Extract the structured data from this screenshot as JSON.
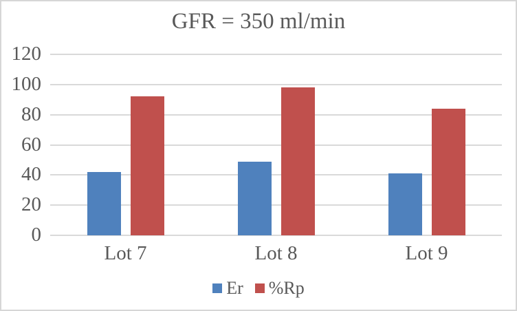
{
  "window": {
    "background": "#FFFFFF",
    "border_color": "#D6D6D6"
  },
  "chart_data": {
    "type": "bar",
    "title": "GFR = 350 ml/min",
    "categories": [
      "Lot 7",
      "Lot 8",
      "Lot 9"
    ],
    "series": [
      {
        "name": "Er",
        "color": "#4F81BD",
        "values": [
          42,
          49,
          41
        ]
      },
      {
        "name": "%Rp",
        "color": "#C0504D",
        "values": [
          92,
          98,
          84
        ]
      }
    ],
    "xlabel": "",
    "ylabel": "",
    "ylim": [
      0,
      120
    ],
    "yticks": [
      0,
      20,
      40,
      60,
      80,
      100,
      120
    ],
    "grid": "horizontal",
    "gridline_color": "#D9D9D9",
    "text_color": "#595959",
    "legend_position": "bottom",
    "legend_entries": [
      "Er",
      "%Rp"
    ]
  }
}
